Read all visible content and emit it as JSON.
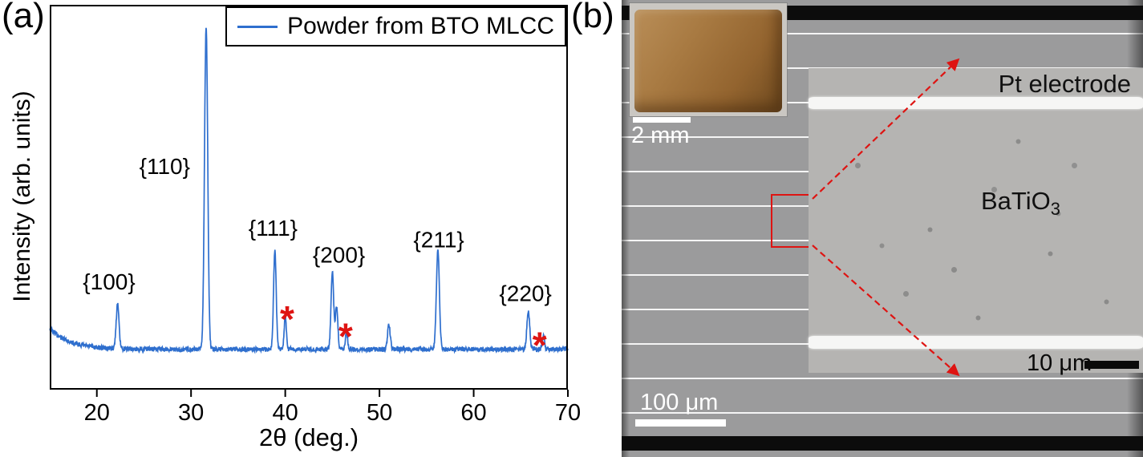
{
  "figure": {
    "panel_a_label": "(a)",
    "panel_b_label": "(b)"
  },
  "chart_data": {
    "type": "line",
    "title": "",
    "xlabel": "2θ (deg.)",
    "ylabel": "Intensity (arb. units)",
    "xlim": [
      15,
      70
    ],
    "x_ticks": [
      "20",
      "30",
      "40",
      "50",
      "60",
      "70"
    ],
    "grid": false,
    "legend_position": "top-right",
    "legend": [
      {
        "label": "Powder from BTO MLCC",
        "color": "#2f6fce"
      }
    ],
    "line_color": "#2f6fce",
    "marker_color": "#de1412",
    "baseline_frac": 0.895,
    "peaks": [
      {
        "label": "{100}",
        "two_theta": 22.2,
        "rel_height": 0.115,
        "sigma": 0.15,
        "label_x": 21.3,
        "label_y": 0.74
      },
      {
        "label": "{110}",
        "two_theta": 31.6,
        "rel_height": 0.84,
        "sigma": 0.17,
        "label_x": 27.2,
        "label_y": 0.44
      },
      {
        "label": "{111}",
        "two_theta": 38.9,
        "rel_height": 0.26,
        "sigma": 0.14,
        "label_x": 38.7,
        "label_y": 0.6
      },
      {
        "label": "{200}",
        "two_theta": 45.0,
        "rel_height": 0.2,
        "sigma": 0.14,
        "label_x": 45.7,
        "label_y": 0.67
      },
      {
        "label": "",
        "two_theta": 45.45,
        "rel_height": 0.11,
        "sigma": 0.13
      },
      {
        "label": "",
        "two_theta": 51.0,
        "rel_height": 0.062,
        "sigma": 0.14
      },
      {
        "label": "{211}",
        "two_theta": 56.2,
        "rel_height": 0.255,
        "sigma": 0.16,
        "label_x": 56.3,
        "label_y": 0.63
      },
      {
        "label": "{220}",
        "two_theta": 65.8,
        "rel_height": 0.1,
        "sigma": 0.15,
        "label_x": 65.5,
        "label_y": 0.77
      }
    ],
    "impurity_marks": [
      {
        "marker": "*",
        "two_theta": 40.0,
        "rel_height": 0.085,
        "sigma": 0.12,
        "mark_x": 40.2,
        "mark_y": 0.8
      },
      {
        "marker": "*",
        "two_theta": 46.5,
        "rel_height": 0.045,
        "sigma": 0.12,
        "mark_x": 46.4,
        "mark_y": 0.845
      },
      {
        "marker": "*",
        "two_theta": 67.4,
        "rel_height": 0.035,
        "sigma": 0.12,
        "mark_x": 67.0,
        "mark_y": 0.868
      }
    ]
  },
  "sem": {
    "annotation_color": "#de1412",
    "photo_scalebar_label": "2 mm",
    "main_scalebar_label": "100 μm",
    "zoom": {
      "electrode_label": "Pt electrode",
      "material_base": "BaTiO",
      "material_sub": "3",
      "scalebar_label": "10 μm"
    }
  }
}
